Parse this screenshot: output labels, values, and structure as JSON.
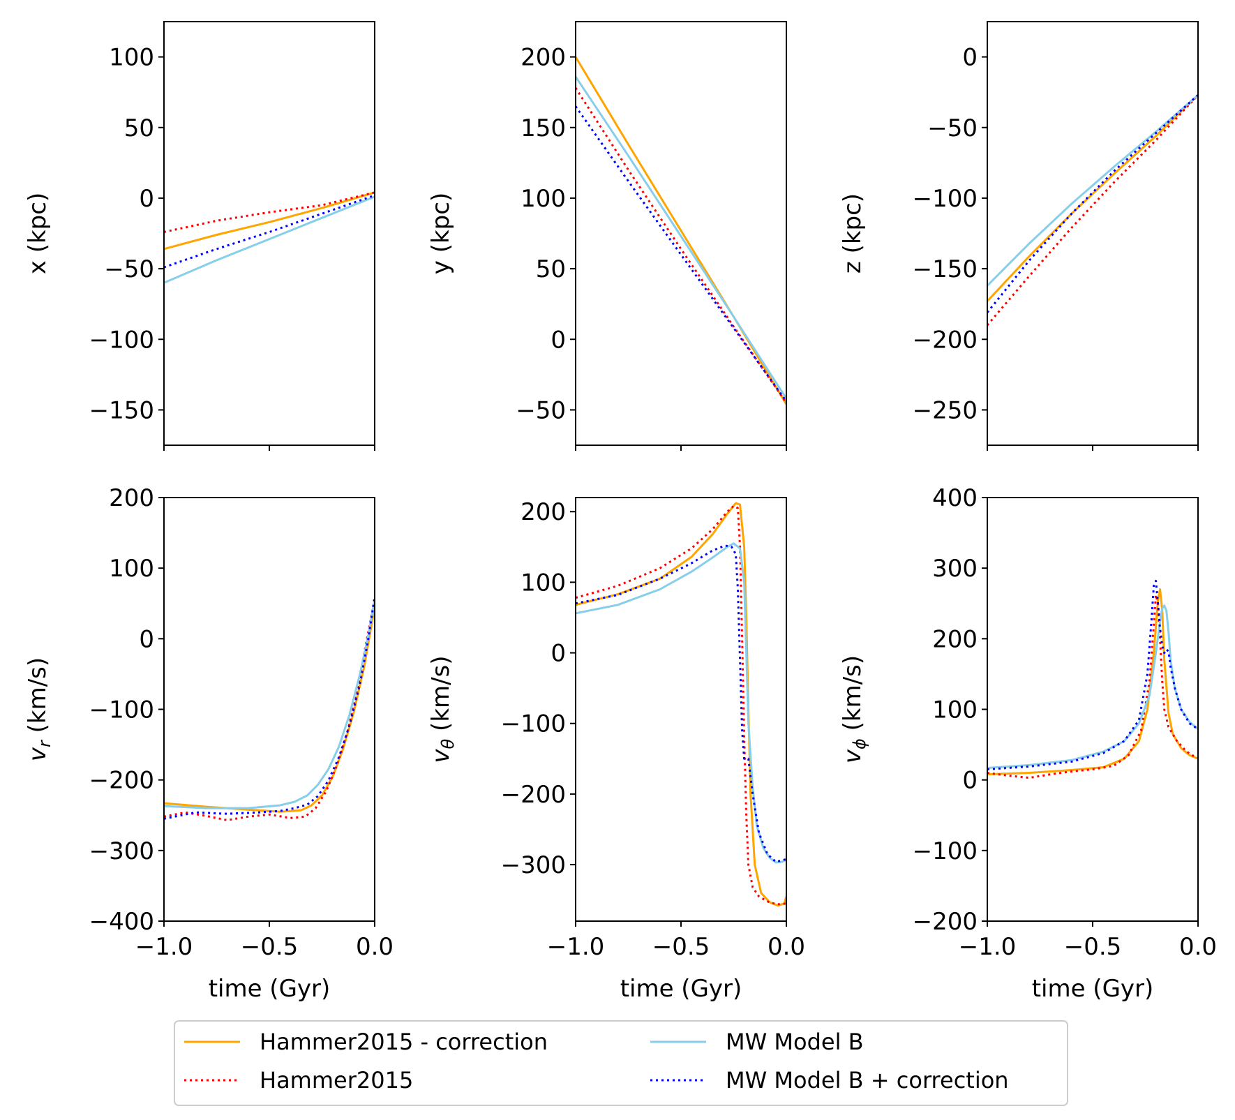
{
  "chart_data": [
    {
      "type": "line",
      "id": "x",
      "ylabel": "x (kpc)",
      "ylabel_math": null,
      "xlim": [
        -1.0,
        0.0
      ],
      "ylim": [
        -175,
        125
      ],
      "yticks": [
        100,
        50,
        0,
        -50,
        -100,
        -150
      ],
      "ytick_labels": [
        "100",
        "50",
        "0",
        "−50",
        "−100",
        "−150"
      ],
      "xlabel": "",
      "xtick_labels_visible": false,
      "series": [
        {
          "name": "Hammer2015 - correction",
          "x": [
            -1.0,
            -0.75,
            -0.5,
            -0.25,
            0.0
          ],
          "y": [
            -36,
            -26,
            -17,
            -7,
            4
          ]
        },
        {
          "name": "Hammer2015",
          "x": [
            -1.0,
            -0.75,
            -0.5,
            -0.25,
            0.0
          ],
          "y": [
            -24,
            -16,
            -10,
            -5,
            4
          ]
        },
        {
          "name": "MW Model B",
          "x": [
            -1.0,
            -0.75,
            -0.5,
            -0.25,
            0.0
          ],
          "y": [
            -60,
            -44,
            -29,
            -14,
            1
          ]
        },
        {
          "name": "MW Model B + correction",
          "x": [
            -1.0,
            -0.75,
            -0.5,
            -0.25,
            0.0
          ],
          "y": [
            -49,
            -36,
            -24,
            -11,
            2
          ]
        }
      ]
    },
    {
      "type": "line",
      "id": "y",
      "ylabel": "y (kpc)",
      "ylabel_math": null,
      "xlim": [
        -1.0,
        0.0
      ],
      "ylim": [
        -75,
        225
      ],
      "yticks": [
        200,
        150,
        100,
        50,
        0,
        -50
      ],
      "ytick_labels": [
        "200",
        "150",
        "100",
        "50",
        "0",
        "−50"
      ],
      "xlabel": "",
      "xtick_labels_visible": false,
      "series": [
        {
          "name": "Hammer2015 - correction",
          "x": [
            -1.0,
            -0.75,
            -0.5,
            -0.25,
            0.0
          ],
          "y": [
            200,
            138,
            77,
            16,
            -46
          ]
        },
        {
          "name": "Hammer2015",
          "x": [
            -1.0,
            -0.75,
            -0.5,
            -0.25,
            0.0
          ],
          "y": [
            178,
            120,
            64,
            9,
            -45
          ]
        },
        {
          "name": "MW Model B",
          "x": [
            -1.0,
            -0.75,
            -0.5,
            -0.25,
            0.0
          ],
          "y": [
            186,
            130,
            73,
            16,
            -42
          ]
        },
        {
          "name": "MW Model B + correction",
          "x": [
            -1.0,
            -0.75,
            -0.5,
            -0.25,
            0.0
          ],
          "y": [
            165,
            112,
            60,
            8,
            -44
          ]
        }
      ]
    },
    {
      "type": "line",
      "id": "z",
      "ylabel": "z (kpc)",
      "ylabel_math": null,
      "xlim": [
        -1.0,
        0.0
      ],
      "ylim": [
        -275,
        25
      ],
      "yticks": [
        0,
        -50,
        -100,
        -150,
        -200,
        -250
      ],
      "ytick_labels": [
        "0",
        "−50",
        "−100",
        "−150",
        "−200",
        "−250"
      ],
      "xlabel": "",
      "xtick_labels_visible": false,
      "series": [
        {
          "name": "Hammer2015 - correction",
          "x": [
            -1.0,
            -0.8,
            -0.6,
            -0.4,
            -0.2,
            0.0
          ],
          "y": [
            -173,
            -141,
            -111,
            -83,
            -56,
            -27
          ]
        },
        {
          "name": "Hammer2015",
          "x": [
            -1.0,
            -0.8,
            -0.6,
            -0.4,
            -0.2,
            0.0
          ],
          "y": [
            -190,
            -155,
            -121,
            -89,
            -59,
            -27
          ]
        },
        {
          "name": "MW Model B",
          "x": [
            -1.0,
            -0.8,
            -0.6,
            -0.4,
            -0.2,
            0.0
          ],
          "y": [
            -162,
            -132,
            -104,
            -78,
            -53,
            -27
          ]
        },
        {
          "name": "MW Model B + correction",
          "x": [
            -1.0,
            -0.8,
            -0.6,
            -0.4,
            -0.2,
            0.0
          ],
          "y": [
            -181,
            -144,
            -111,
            -81,
            -54,
            -27
          ]
        }
      ]
    },
    {
      "type": "line",
      "id": "vr",
      "ylabel": "v_r (km/s)",
      "ylabel_math": {
        "sym": "v",
        "sub": "r",
        "unit": "(km/s)"
      },
      "xlim": [
        -1.0,
        0.0
      ],
      "ylim": [
        -400,
        200
      ],
      "yticks": [
        200,
        100,
        0,
        -100,
        -200,
        -300,
        -400
      ],
      "ytick_labels": [
        "200",
        "100",
        "0",
        "−100",
        "−200",
        "−300",
        "−400"
      ],
      "xlabel": "time (Gyr)",
      "xtick_labels_visible": true,
      "series": [
        {
          "name": "Hammer2015 - correction",
          "x": [
            -1.0,
            -0.8,
            -0.6,
            -0.45,
            -0.35,
            -0.3,
            -0.25,
            -0.2,
            -0.15,
            -0.1,
            -0.05,
            0.0
          ],
          "y": [
            -233,
            -238,
            -242,
            -245,
            -243,
            -236,
            -222,
            -196,
            -156,
            -105,
            -40,
            45
          ]
        },
        {
          "name": "Hammer2015",
          "x": [
            -1.0,
            -0.9,
            -0.8,
            -0.7,
            -0.6,
            -0.5,
            -0.4,
            -0.33,
            -0.28,
            -0.23,
            -0.18,
            -0.13,
            -0.08,
            -0.04,
            0.0
          ],
          "y": [
            -252,
            -246,
            -251,
            -257,
            -252,
            -249,
            -254,
            -252,
            -240,
            -216,
            -180,
            -133,
            -70,
            -5,
            55
          ]
        },
        {
          "name": "MW Model B",
          "x": [
            -1.0,
            -0.8,
            -0.6,
            -0.45,
            -0.38,
            -0.32,
            -0.27,
            -0.22,
            -0.17,
            -0.12,
            -0.07,
            -0.03,
            0.0
          ],
          "y": [
            -237,
            -240,
            -240,
            -236,
            -231,
            -222,
            -207,
            -185,
            -153,
            -108,
            -50,
            5,
            55
          ]
        },
        {
          "name": "MW Model B + correction",
          "x": [
            -1.0,
            -0.85,
            -0.7,
            -0.55,
            -0.45,
            -0.38,
            -0.32,
            -0.27,
            -0.22,
            -0.17,
            -0.12,
            -0.07,
            -0.03,
            0.0
          ],
          "y": [
            -255,
            -246,
            -248,
            -246,
            -244,
            -240,
            -235,
            -223,
            -201,
            -168,
            -123,
            -64,
            0,
            60
          ]
        }
      ]
    },
    {
      "type": "line",
      "id": "vtheta",
      "ylabel": "v_θ (km/s)",
      "ylabel_math": {
        "sym": "v",
        "sub": "θ",
        "unit": "(km/s)"
      },
      "xlim": [
        -1.0,
        0.0
      ],
      "ylim": [
        -380,
        220
      ],
      "yticks": [
        200,
        100,
        0,
        -100,
        -200,
        -300
      ],
      "ytick_labels": [
        "200",
        "100",
        "0",
        "−100",
        "−200",
        "−300"
      ],
      "xlabel": "time (Gyr)",
      "xtick_labels_visible": true,
      "series": [
        {
          "name": "Hammer2015 - correction",
          "x": [
            -1.0,
            -0.8,
            -0.6,
            -0.45,
            -0.35,
            -0.28,
            -0.24,
            -0.22,
            -0.2,
            -0.19,
            -0.18,
            -0.17,
            -0.15,
            -0.12,
            -0.08,
            -0.04,
            -0.01,
            0.0
          ],
          "y": [
            68,
            83,
            105,
            136,
            168,
            197,
            212,
            210,
            150,
            50,
            -80,
            -200,
            -300,
            -340,
            -353,
            -358,
            -355,
            -345
          ]
        },
        {
          "name": "Hammer2015",
          "x": [
            -1.0,
            -0.8,
            -0.6,
            -0.45,
            -0.35,
            -0.28,
            -0.25,
            -0.23,
            -0.22,
            -0.21,
            -0.2,
            -0.19,
            -0.18,
            -0.16,
            -0.13,
            -0.09,
            -0.05,
            -0.02,
            0.0
          ],
          "y": [
            78,
            95,
            120,
            148,
            175,
            200,
            208,
            205,
            150,
            20,
            -120,
            -230,
            -300,
            -332,
            -345,
            -352,
            -356,
            -356,
            -355
          ]
        },
        {
          "name": "MW Model B",
          "x": [
            -1.0,
            -0.8,
            -0.6,
            -0.45,
            -0.35,
            -0.28,
            -0.25,
            -0.22,
            -0.2,
            -0.19,
            -0.18,
            -0.16,
            -0.14,
            -0.11,
            -0.08,
            -0.05,
            -0.02,
            0.0
          ],
          "y": [
            56,
            68,
            90,
            115,
            135,
            150,
            155,
            148,
            100,
            0,
            -100,
            -190,
            -245,
            -276,
            -290,
            -297,
            -296,
            -293
          ]
        },
        {
          "name": "MW Model B + correction",
          "x": [
            -1.0,
            -0.8,
            -0.6,
            -0.45,
            -0.35,
            -0.29,
            -0.26,
            -0.24,
            -0.23,
            -0.22,
            -0.21,
            -0.2,
            -0.18,
            -0.16,
            -0.13,
            -0.09,
            -0.05,
            -0.02,
            0.0
          ],
          "y": [
            70,
            82,
            105,
            127,
            145,
            152,
            150,
            140,
            90,
            -10,
            -110,
            -150,
            -150,
            -200,
            -255,
            -285,
            -296,
            -294,
            -292
          ]
        }
      ]
    },
    {
      "type": "line",
      "id": "vphi",
      "ylabel": "v_ϕ (km/s)",
      "ylabel_math": {
        "sym": "v",
        "sub": "ϕ",
        "unit": "(km/s)"
      },
      "xlim": [
        -1.0,
        0.0
      ],
      "ylim": [
        -200,
        400
      ],
      "yticks": [
        400,
        300,
        200,
        100,
        0,
        -100,
        -200
      ],
      "ytick_labels": [
        "400",
        "300",
        "200",
        "100",
        "0",
        "−100",
        "−200"
      ],
      "xlabel": "time (Gyr)",
      "xtick_labels_visible": true,
      "series": [
        {
          "name": "Hammer2015 - correction",
          "x": [
            -1.0,
            -0.8,
            -0.6,
            -0.45,
            -0.35,
            -0.28,
            -0.24,
            -0.21,
            -0.19,
            -0.18,
            -0.17,
            -0.16,
            -0.14,
            -0.12,
            -0.08,
            -0.04,
            0.0
          ],
          "y": [
            8,
            10,
            14,
            18,
            30,
            55,
            100,
            180,
            255,
            270,
            240,
            170,
            95,
            65,
            45,
            35,
            30
          ]
        },
        {
          "name": "Hammer2015",
          "x": [
            -1.0,
            -0.9,
            -0.8,
            -0.7,
            -0.6,
            -0.5,
            -0.4,
            -0.33,
            -0.27,
            -0.23,
            -0.21,
            -0.2,
            -0.19,
            -0.18,
            -0.17,
            -0.16,
            -0.14,
            -0.1,
            -0.06,
            -0.03,
            0.0
          ],
          "y": [
            10,
            6,
            3,
            8,
            12,
            15,
            20,
            35,
            70,
            140,
            220,
            262,
            250,
            200,
            140,
            100,
            75,
            55,
            42,
            35,
            32
          ]
        },
        {
          "name": "MW Model B",
          "x": [
            -1.0,
            -0.8,
            -0.6,
            -0.45,
            -0.35,
            -0.28,
            -0.23,
            -0.2,
            -0.18,
            -0.17,
            -0.16,
            -0.15,
            -0.14,
            -0.13,
            -0.11,
            -0.08,
            -0.04,
            0.0
          ],
          "y": [
            17,
            21,
            28,
            40,
            55,
            80,
            120,
            180,
            225,
            243,
            247,
            240,
            210,
            170,
            130,
            100,
            82,
            72
          ]
        },
        {
          "name": "MW Model B + correction",
          "x": [
            -1.0,
            -0.8,
            -0.6,
            -0.45,
            -0.35,
            -0.28,
            -0.24,
            -0.22,
            -0.21,
            -0.2,
            -0.19,
            -0.18,
            -0.17,
            -0.16,
            -0.15,
            -0.14,
            -0.13,
            -0.11,
            -0.08,
            -0.04,
            0.0
          ],
          "y": [
            15,
            19,
            26,
            38,
            55,
            85,
            150,
            230,
            275,
            282,
            250,
            215,
            190,
            180,
            185,
            182,
            160,
            130,
            100,
            80,
            72
          ]
        }
      ]
    }
  ],
  "xtick_values": [
    -1.0,
    -0.5,
    0.0
  ],
  "xtick_labels": [
    "−1.0",
    "−0.5",
    "0.0"
  ],
  "styles": {
    "Hammer2015 - correction": {
      "color": "#FFA500",
      "dash": "solid"
    },
    "Hammer2015": {
      "color": "#FF0000",
      "dash": "dotted"
    },
    "MW Model B": {
      "color": "#87CEEB",
      "dash": "solid"
    },
    "MW Model B + correction": {
      "color": "#0000FF",
      "dash": "dotted"
    }
  },
  "legend": {
    "location": "bottom-center",
    "columns": 2,
    "entries": [
      "Hammer2015 - correction",
      "Hammer2015",
      "MW Model B",
      "MW Model B + correction"
    ]
  }
}
